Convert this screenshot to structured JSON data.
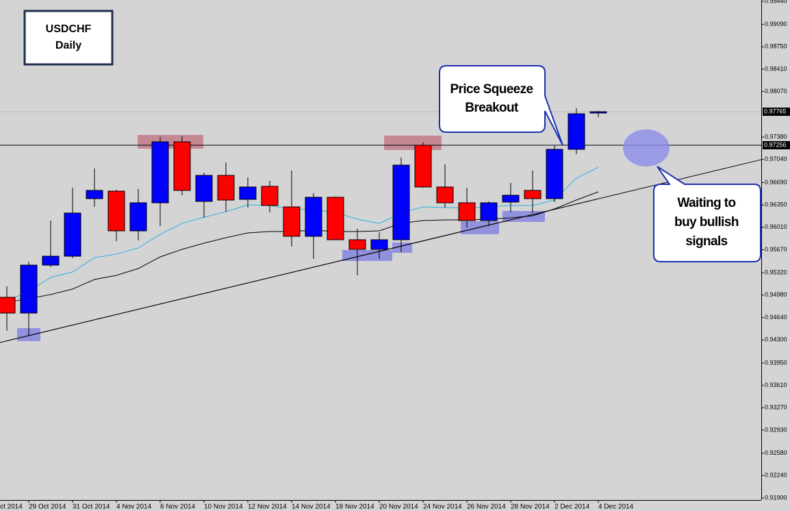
{
  "chart_data": {
    "type": "candlestick",
    "title": "USDCHF",
    "subtitle": "Daily",
    "categories": [
      null,
      "29 Oct 2014",
      null,
      "31 Oct 2014",
      null,
      "4 Nov 2014",
      null,
      "6 Nov 2014",
      null,
      "10 Nov 2014",
      null,
      "12 Nov 2014",
      null,
      "14 Nov 2014",
      null,
      "18 Nov 2014",
      null,
      "20 Nov 2014",
      null,
      "24 Nov 2014",
      null,
      "26 Nov 2014",
      null,
      "28 Nov 2014",
      null,
      "2 Dec 2014",
      null,
      "4 Dec 2014"
    ],
    "x_edge_label": "ct 2014",
    "open": [
      0.94947,
      0.94708,
      0.95436,
      0.95571,
      0.96445,
      0.96559,
      0.95956,
      0.96382,
      0.97308,
      0.96403,
      0.96798,
      0.96434,
      0.96632,
      0.9632,
      0.95873,
      0.96466,
      0.95821,
      0.95675,
      0.95821,
      0.97256,
      0.96622,
      0.96382,
      0.96112,
      0.96393,
      0.9657,
      0.96445,
      0.97194,
      0.97745
    ],
    "high": [
      0.95114,
      0.95488,
      0.96112,
      0.96611,
      0.96902,
      0.9658,
      0.9659,
      0.97381,
      0.97391,
      0.9684,
      0.96996,
      0.96767,
      0.96715,
      0.96871,
      0.96528,
      0.96476,
      0.95987,
      0.95935,
      0.97069,
      0.97298,
      0.96965,
      0.96611,
      0.96403,
      0.96684,
      0.96871,
      0.97246,
      0.97818,
      0.97776
    ],
    "low": [
      0.94438,
      0.94365,
      0.95405,
      0.9554,
      0.9632,
      0.958,
      0.9581,
      0.96029,
      0.96497,
      0.96154,
      0.96247,
      0.9631,
      0.96237,
      0.95717,
      0.9553,
      0.95821,
      0.9528,
      0.9553,
      0.95634,
      0.96611,
      0.9631,
      0.96008,
      0.96029,
      0.96237,
      0.96226,
      0.96393,
      0.97121,
      0.97682
    ],
    "close": [
      0.94708,
      0.95436,
      0.95571,
      0.96226,
      0.9657,
      0.95956,
      0.96382,
      0.97308,
      0.9657,
      0.96798,
      0.96424,
      0.96622,
      0.96341,
      0.95873,
      0.96466,
      0.95821,
      0.95675,
      0.95821,
      0.96954,
      0.96622,
      0.96382,
      0.96112,
      0.96382,
      0.96497,
      0.96445,
      0.97194,
      0.97734,
      0.97765
    ],
    "up_color": "#0000ff",
    "down_color": "#ff0000",
    "moving_averages": [
      {
        "color": "#2ab0e0",
        "values": [
          0.94885,
          0.95041,
          0.95249,
          0.95332,
          0.9555,
          0.95602,
          0.95696,
          0.95904,
          0.9607,
          0.96164,
          0.96247,
          0.96351,
          0.96341,
          0.96289,
          0.96278,
          0.96237,
          0.96133,
          0.9607,
          0.96226,
          0.9632,
          0.9631,
          0.96299,
          0.9632,
          0.96341,
          0.96341,
          0.96424,
          0.96757,
          0.96923
        ]
      },
      {
        "color": "#000000",
        "values": [
          0.94874,
          0.94926,
          0.94989,
          0.95072,
          0.95218,
          0.9528,
          0.95384,
          0.95561,
          0.95675,
          0.95769,
          0.95852,
          0.95925,
          0.95946,
          0.95946,
          0.95966,
          0.95946,
          0.95946,
          0.95956,
          0.9607,
          0.96112,
          0.96122,
          0.96122,
          0.96133,
          0.96154,
          0.96185,
          0.96289,
          0.96424,
          0.96549
        ]
      }
    ],
    "trendline": {
      "x": [
        0,
        27
      ],
      "values": [
        0.94286,
        0.96443
      ]
    },
    "level_line": 0.97256,
    "bid_line": 0.97765,
    "ylim": [
      0.91869,
      0.99461
    ],
    "yticks": [
      {
        "value": 0.9944,
        "label": "0.99440"
      },
      {
        "value": 0.9909,
        "label": "0.99090"
      },
      {
        "value": 0.9875,
        "label": "0.98750"
      },
      {
        "value": 0.9841,
        "label": "0.98410"
      },
      {
        "value": 0.9807,
        "label": "0.98070"
      },
      {
        "value": 0.9738,
        "label": "0.97380"
      },
      {
        "value": 0.9704,
        "label": "0.97040"
      },
      {
        "value": 0.9669,
        "label": "0.96690"
      },
      {
        "value": 0.9635,
        "label": "0.96350"
      },
      {
        "value": 0.9601,
        "label": "0.96010"
      },
      {
        "value": 0.9567,
        "label": "0.95670"
      },
      {
        "value": 0.9532,
        "label": "0.95320"
      },
      {
        "value": 0.9498,
        "label": "0.94980"
      },
      {
        "value": 0.9464,
        "label": "0.94640"
      },
      {
        "value": 0.943,
        "label": "0.94300"
      },
      {
        "value": 0.9395,
        "label": "0.93950"
      },
      {
        "value": 0.9361,
        "label": "0.93610"
      },
      {
        "value": 0.9327,
        "label": "0.93270"
      },
      {
        "value": 0.9293,
        "label": "0.92930"
      },
      {
        "value": 0.9258,
        "label": "0.92580"
      },
      {
        "value": 0.9224,
        "label": "0.92240"
      },
      {
        "value": 0.919,
        "label": "0.91900"
      }
    ],
    "annotations": [
      {
        "lines": [
          "Price Squeeze",
          "Breakout"
        ]
      },
      {
        "lines": [
          "Waiting to",
          "buy bullish",
          "signals"
        ]
      }
    ]
  }
}
